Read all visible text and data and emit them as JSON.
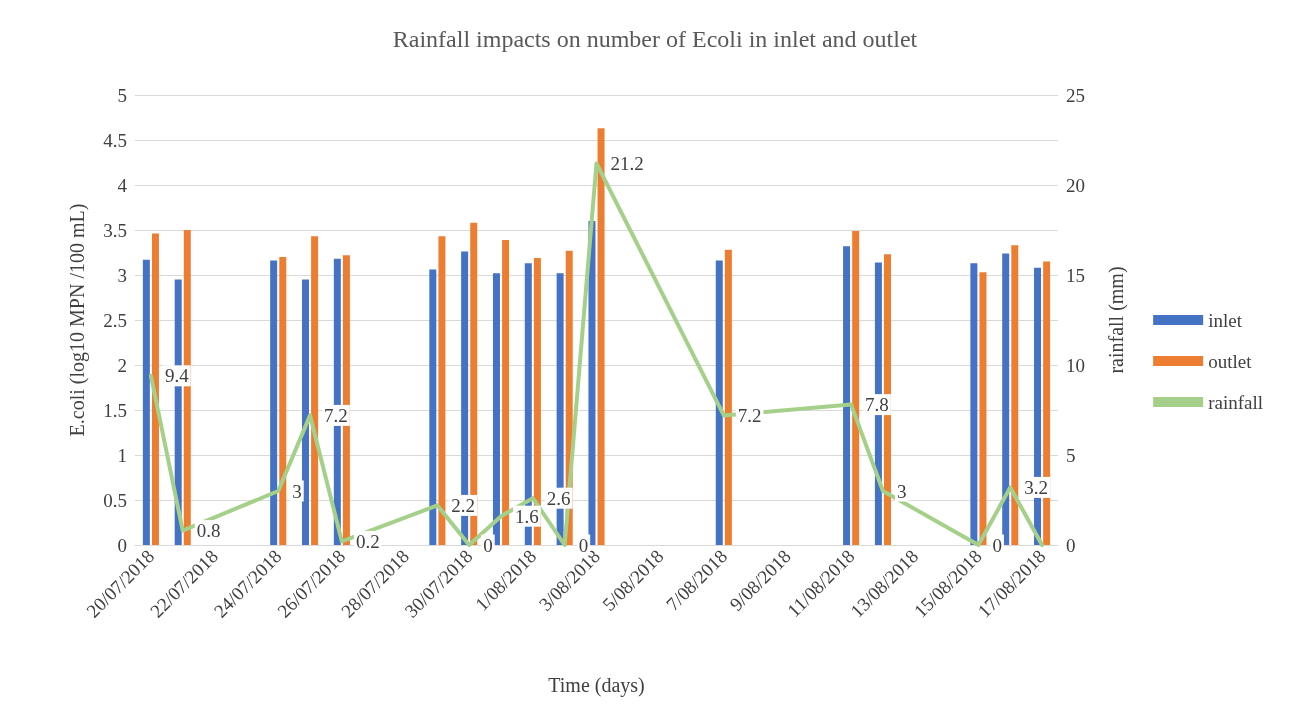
{
  "chart_data": {
    "type": "bar",
    "title": "Rainfall impacts on number of Ecoli in inlet and outlet",
    "xlabel": "Time (days)",
    "ylabel": "E.coli (log10 MPN /100 mL)",
    "y2label": "rainfall (mm)",
    "categories": [
      "20/07/2018",
      null,
      "22/07/2018",
      null,
      "24/07/2018",
      null,
      "26/07/2018",
      null,
      "28/07/2018",
      null,
      "30/07/2018",
      null,
      "1/08/2018",
      null,
      "3/08/2018",
      null,
      "5/08/2018",
      null,
      "7/08/2018",
      null,
      "9/08/2018",
      null,
      "11/08/2018",
      null,
      "13/08/2018",
      null,
      "15/08/2018",
      null,
      "17/08/2018"
    ],
    "series": [
      {
        "name": "inlet",
        "color": "#4472c4",
        "values": [
          3.17,
          2.95,
          null,
          null,
          3.16,
          2.95,
          3.18,
          null,
          null,
          3.06,
          3.26,
          3.02,
          3.13,
          3.02,
          3.6,
          null,
          null,
          null,
          3.16,
          null,
          null,
          null,
          3.32,
          3.14,
          null,
          null,
          3.13,
          3.24,
          3.08
        ]
      },
      {
        "name": "outlet",
        "color": "#ed7d31",
        "values": [
          3.46,
          3.5,
          null,
          null,
          3.2,
          3.43,
          3.22,
          null,
          null,
          3.43,
          3.58,
          3.39,
          3.19,
          3.27,
          4.63,
          null,
          null,
          null,
          3.28,
          null,
          null,
          null,
          3.49,
          3.23,
          null,
          null,
          3.03,
          3.33,
          3.15
        ]
      },
      {
        "name": "rainfall",
        "type": "line",
        "axis": "y2",
        "color": "#a5d08a",
        "values": [
          9.4,
          0.8,
          null,
          null,
          3,
          7.2,
          0.2,
          null,
          null,
          2.2,
          0,
          1.6,
          2.6,
          0,
          21.2,
          null,
          null,
          null,
          7.2,
          null,
          null,
          null,
          7.8,
          3,
          null,
          null,
          0,
          3.2,
          0
        ],
        "value_labels": [
          "9.4",
          "0.8",
          null,
          null,
          "3",
          "7.2",
          "0.2",
          null,
          null,
          "2.2",
          "0",
          "1.6",
          "2.6",
          "0",
          "21.2",
          null,
          null,
          null,
          "7.2",
          null,
          null,
          null,
          "7.8",
          "3",
          null,
          null,
          "0",
          "3.2",
          null
        ]
      }
    ],
    "ylim": [
      0,
      5
    ],
    "yticks": [
      0,
      0.5,
      1,
      1.5,
      2,
      2.5,
      3,
      3.5,
      4,
      4.5,
      5
    ],
    "y2lim": [
      0,
      25
    ],
    "y2ticks": [
      0,
      5,
      10,
      15,
      20,
      25
    ],
    "grid": "y",
    "legend": "right",
    "marker": "none",
    "line_style": "solid"
  }
}
